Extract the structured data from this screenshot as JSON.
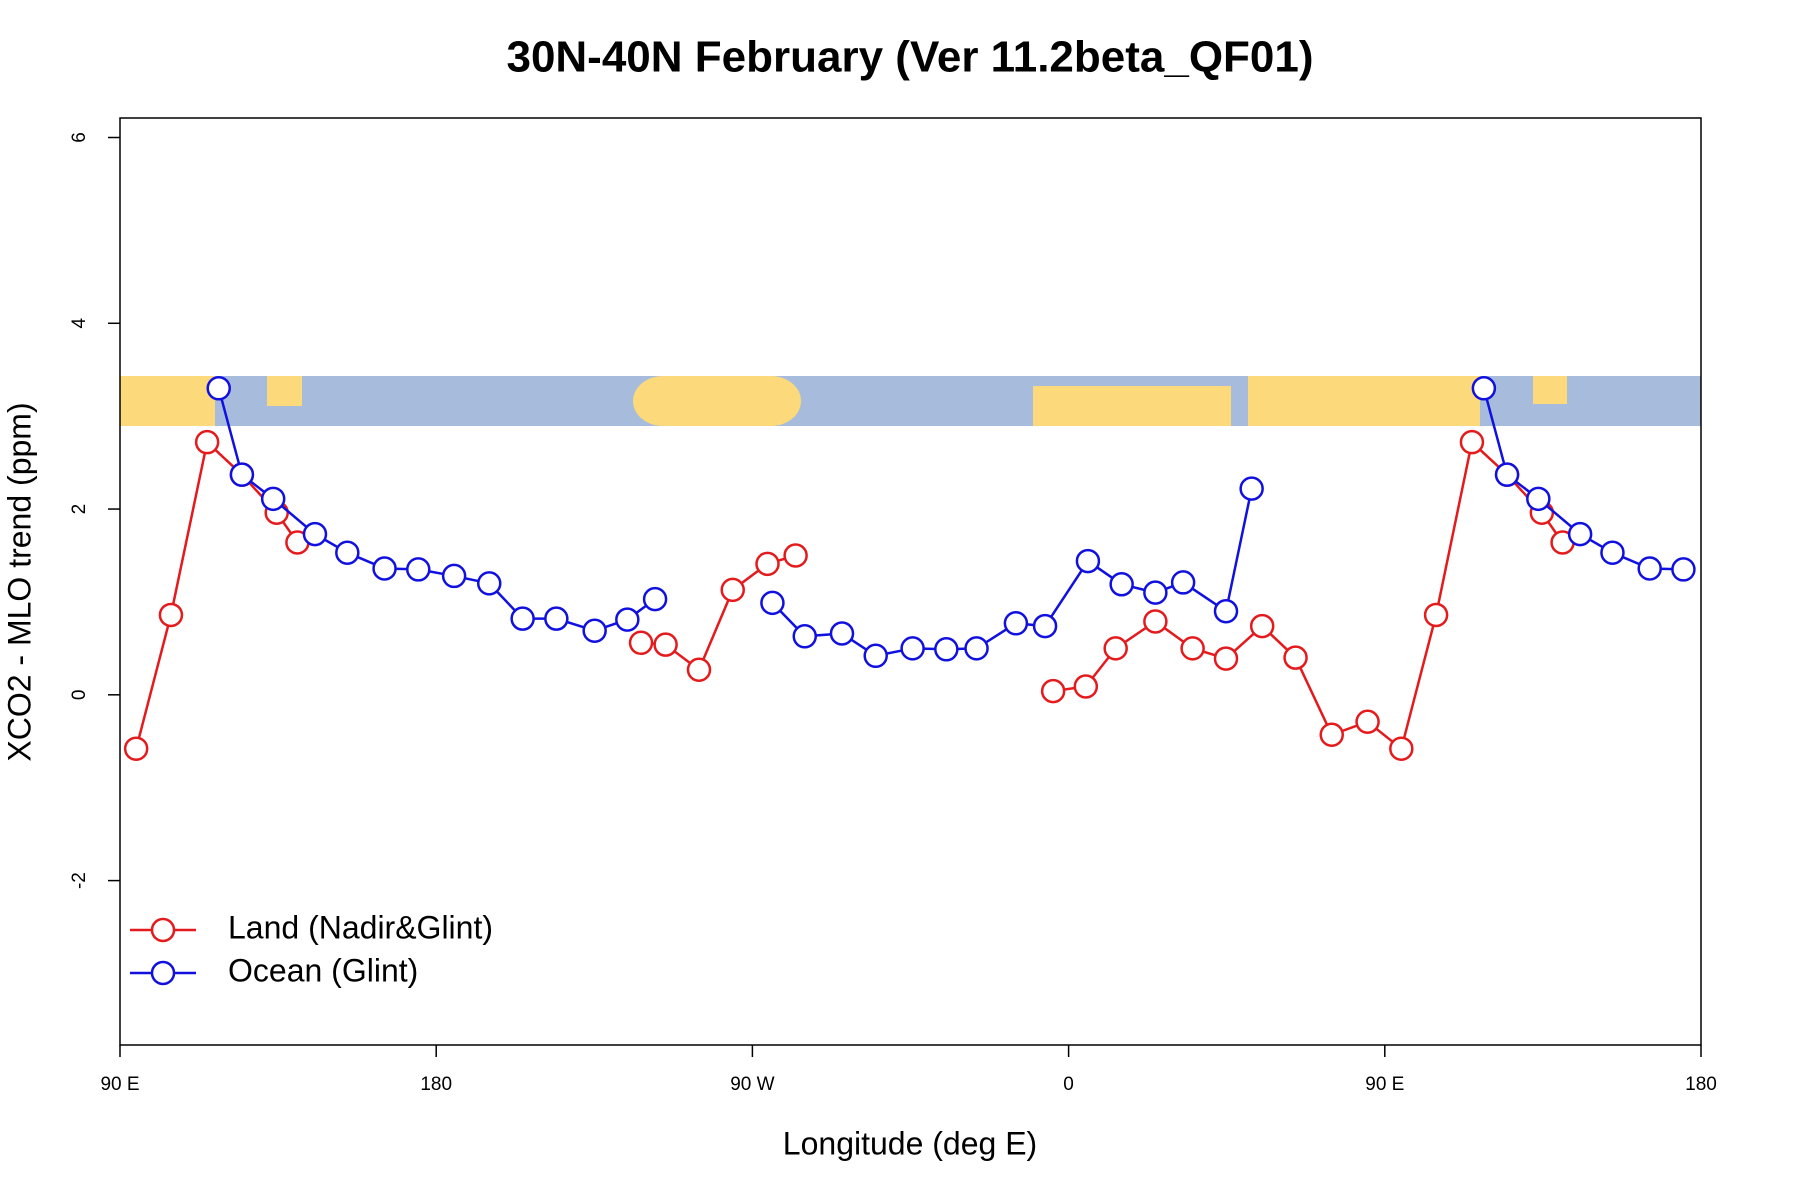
{
  "chart_data": {
    "type": "line",
    "title": "30N-40N February (Ver 11.2beta_QF01)",
    "xlabel": "Longitude (deg E)",
    "ylabel": "XCO2 - MLO trend (ppm)",
    "xlim": [
      90,
      540
    ],
    "ylim": [
      -3.77,
      6.21
    ],
    "xticks": [
      {
        "value": 90,
        "label": "90 E"
      },
      180,
      {
        "value": 270,
        "label": "90 W"
      },
      {
        "value": 360,
        "label": "0"
      },
      {
        "value": 450,
        "label": "90 E"
      },
      {
        "value": 540,
        "label": "180"
      }
    ],
    "yticks": [
      -2,
      0,
      2,
      4,
      6
    ],
    "legend": "bottom-left",
    "series": [
      {
        "name": "Land (Nadir&Glint)",
        "color": "#e41a1c",
        "x": [
          94.6,
          104.5,
          114.8,
          124.7,
          134.6,
          140.5,
          null,
          238.3,
          245.3,
          254.8,
          264.4,
          274.3,
          282.3,
          null,
          355.6,
          364.9,
          373.4,
          384.7,
          395.3,
          404.8,
          415.1,
          424.6,
          434.9,
          445.1,
          454.7,
          464.6,
          474.8,
          484.8,
          494.7,
          500.6
        ],
        "values": [
          -0.58,
          0.86,
          2.72,
          2.37,
          1.96,
          1.64,
          null,
          0.56,
          0.54,
          0.27,
          1.13,
          1.41,
          1.5,
          null,
          0.04,
          0.09,
          0.5,
          0.79,
          0.5,
          0.39,
          0.74,
          0.4,
          -0.43,
          -0.29,
          -0.58,
          0.86,
          2.72,
          2.37,
          1.96,
          1.64
        ]
      },
      {
        "name": "Ocean (Glint)",
        "color": "#1010e0",
        "x": [
          118.1,
          124.7,
          133.6,
          145.5,
          154.7,
          165.3,
          174.9,
          185.1,
          195.1,
          204.6,
          214.2,
          225.1,
          234.4,
          242.3,
          null,
          275.7,
          284.9,
          295.5,
          305.1,
          315.6,
          325.2,
          333.8,
          345.0,
          353.3,
          365.5,
          375.1,
          384.7,
          392.6,
          404.8,
          412.1,
          null,
          478.2,
          484.8,
          493.7,
          505.6,
          514.8,
          525.4,
          535.0
        ],
        "values": [
          3.3,
          2.37,
          2.11,
          1.73,
          1.53,
          1.36,
          1.35,
          1.28,
          1.2,
          0.82,
          0.82,
          0.69,
          0.81,
          1.03,
          null,
          0.99,
          0.63,
          0.66,
          0.42,
          0.5,
          0.49,
          0.5,
          0.77,
          0.74,
          1.44,
          1.19,
          1.1,
          1.21,
          0.9,
          2.22,
          null,
          3.3,
          2.37,
          2.11,
          1.73,
          1.53,
          1.36,
          1.35
        ]
      }
    ]
  }
}
